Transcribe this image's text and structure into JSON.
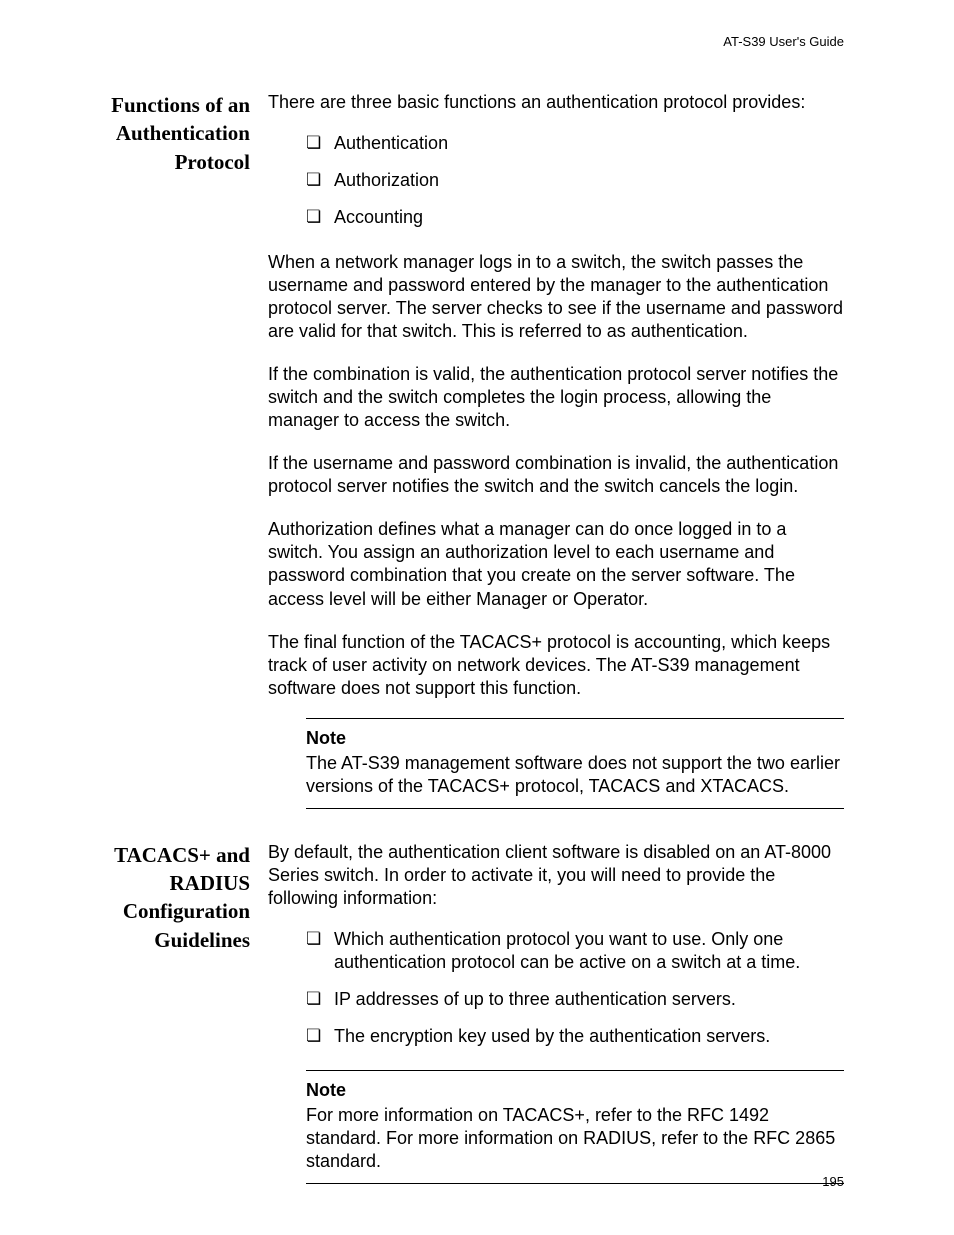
{
  "header": {
    "guide_title": "AT-S39 User's Guide"
  },
  "page_number": "195",
  "section1": {
    "heading": "Functions of an Authentication Protocol",
    "intro": "There are three basic functions an authentication protocol provides:",
    "bullets": [
      "Authentication",
      "Authorization",
      "Accounting"
    ],
    "paras": [
      "When a network manager logs in to a switch, the switch passes the username and password entered by the manager to the authentication protocol server. The server checks to see if the username and password are valid for that switch. This is referred to as authentication.",
      "If the combination is valid, the authentication protocol server notifies the switch and the switch completes the login process, allowing the manager to access the switch.",
      "If the username and password combination is invalid, the authentication protocol server notifies the switch and the switch cancels the login.",
      "Authorization defines what a manager can do once logged in to a switch. You assign an authorization level to each username and password combination that you create on the server software. The access level will be either Manager or Operator.",
      "The final function of the TACACS+ protocol is accounting, which keeps track of user activity on network devices. The AT-S39 management software does not support this function."
    ],
    "note": {
      "title": "Note",
      "body": "The AT-S39 management software does not support the two earlier versions of the TACACS+ protocol, TACACS and XTACACS."
    }
  },
  "section2": {
    "heading": "TACACS+ and RADIUS Configuration Guidelines",
    "intro": "By default, the authentication client software is disabled on an AT-8000 Series switch. In order to activate it, you will need to provide the following information:",
    "bullets": [
      "Which authentication protocol you want to use. Only one authentication protocol can be active on a switch at a time.",
      "IP addresses of up to three authentication servers.",
      "The encryption key used by the authentication servers."
    ],
    "note": {
      "title": "Note",
      "body": "For more information on TACACS+, refer to the RFC 1492 standard. For more information on RADIUS, refer to the RFC 2865 standard."
    }
  }
}
